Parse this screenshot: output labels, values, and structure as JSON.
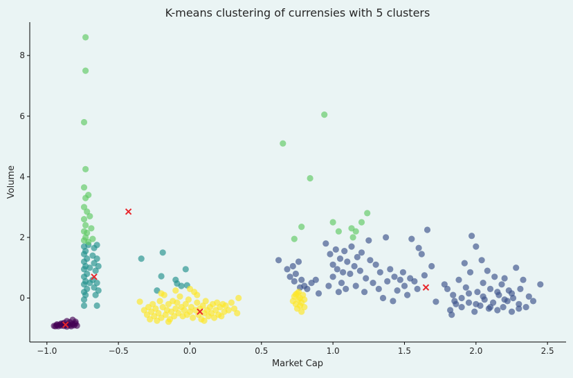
{
  "chart_data": {
    "type": "scatter",
    "title": "K-means clustering of currensies with 5 clusters",
    "xlabel": "Market Cap",
    "ylabel": "Volume",
    "xlim": [
      -1.12,
      2.63
    ],
    "ylim": [
      -1.45,
      9.1
    ],
    "xticks": [
      -1.0,
      -0.5,
      0.0,
      0.5,
      1.0,
      1.5,
      2.0,
      2.5
    ],
    "xtick_labels": [
      "−1.0",
      "−0.5",
      "0.0",
      "0.5",
      "1.0",
      "1.5",
      "2.0",
      "2.5"
    ],
    "yticks": [
      0,
      2,
      4,
      6,
      8
    ],
    "ytick_labels": [
      "0",
      "2",
      "4",
      "6",
      "8"
    ],
    "grid": false,
    "legend": "none",
    "point_alpha": 0.65,
    "centroid_color": "#e8262b",
    "series": [
      {
        "color": "#440154",
        "points": [
          [
            -0.95,
            -0.92
          ],
          [
            -0.93,
            -0.9
          ],
          [
            -0.92,
            -0.93
          ],
          [
            -0.91,
            -0.88
          ],
          [
            -0.9,
            -0.91
          ],
          [
            -0.89,
            -0.86
          ],
          [
            -0.88,
            -0.92
          ],
          [
            -0.87,
            -0.89
          ],
          [
            -0.86,
            -0.94
          ],
          [
            -0.85,
            -0.87
          ],
          [
            -0.84,
            -0.9
          ],
          [
            -0.83,
            -0.93
          ],
          [
            -0.82,
            -0.86
          ],
          [
            -0.81,
            -0.9
          ],
          [
            -0.8,
            -0.84
          ],
          [
            -0.79,
            -0.91
          ],
          [
            -0.82,
            -0.72
          ],
          [
            -0.8,
            -0.78
          ],
          [
            -0.84,
            -0.8
          ],
          [
            -0.88,
            -0.82
          ],
          [
            -0.9,
            -0.84
          ],
          [
            -0.86,
            -0.76
          ],
          [
            -0.93,
            -0.87
          ],
          [
            -0.94,
            -0.93
          ]
        ]
      },
      {
        "color": "#3b528b",
        "points": [
          [
            0.62,
            1.25
          ],
          [
            0.68,
            0.95
          ],
          [
            0.7,
            0.7
          ],
          [
            0.72,
            1.05
          ],
          [
            0.73,
            0.55
          ],
          [
            0.74,
            0.8
          ],
          [
            0.76,
            1.2
          ],
          [
            0.77,
            0.35
          ],
          [
            0.78,
            0.6
          ],
          [
            0.8,
            0.4
          ],
          [
            0.82,
            0.3
          ],
          [
            0.85,
            0.5
          ],
          [
            0.88,
            0.6
          ],
          [
            0.9,
            0.15
          ],
          [
            0.95,
            1.8
          ],
          [
            0.97,
            0.4
          ],
          [
            0.98,
            1.45
          ],
          [
            1.0,
            0.7
          ],
          [
            1.0,
            1.1
          ],
          [
            1.02,
            1.6
          ],
          [
            1.03,
            0.95
          ],
          [
            1.04,
            0.2
          ],
          [
            1.05,
            1.3
          ],
          [
            1.06,
            0.5
          ],
          [
            1.07,
            0.85
          ],
          [
            1.08,
            1.55
          ],
          [
            1.09,
            0.3
          ],
          [
            1.1,
            1.2
          ],
          [
            1.12,
            0.8
          ],
          [
            1.13,
            1.7
          ],
          [
            1.15,
            1.05
          ],
          [
            1.16,
            0.4
          ],
          [
            1.17,
            1.35
          ],
          [
            1.19,
            0.9
          ],
          [
            1.2,
            1.5
          ],
          [
            1.22,
            0.2
          ],
          [
            1.23,
            0.65
          ],
          [
            1.25,
            1.9
          ],
          [
            1.26,
            1.25
          ],
          [
            1.28,
            0.5
          ],
          [
            1.3,
            1.1
          ],
          [
            1.32,
            0.3
          ],
          [
            1.33,
            0.85
          ],
          [
            1.35,
            0.0
          ],
          [
            1.37,
            2.0
          ],
          [
            1.38,
            0.55
          ],
          [
            1.4,
            0.95
          ],
          [
            1.42,
            -0.1
          ],
          [
            1.43,
            0.7
          ],
          [
            1.45,
            0.25
          ],
          [
            1.47,
            0.6
          ],
          [
            1.49,
            0.85
          ],
          [
            1.5,
            0.4
          ],
          [
            1.52,
            0.1
          ],
          [
            1.54,
            0.65
          ],
          [
            1.55,
            1.95
          ],
          [
            1.57,
            0.55
          ],
          [
            1.59,
            0.3
          ],
          [
            1.6,
            1.65
          ],
          [
            1.62,
            1.45
          ],
          [
            1.64,
            0.75
          ],
          [
            1.66,
            2.25
          ],
          [
            1.69,
            1.05
          ],
          [
            1.72,
            -0.12
          ],
          [
            1.8,
            0.3
          ],
          [
            1.82,
            -0.4
          ],
          [
            1.84,
            0.1
          ],
          [
            1.86,
            -0.2
          ],
          [
            1.88,
            0.6
          ],
          [
            1.9,
            -0.3
          ],
          [
            1.92,
            1.15
          ],
          [
            1.93,
            0.35
          ],
          [
            1.95,
            -0.15
          ],
          [
            1.96,
            0.85
          ],
          [
            1.97,
            2.05
          ],
          [
            1.99,
            -0.45
          ],
          [
            2.0,
            1.7
          ],
          [
            2.01,
            0.2
          ],
          [
            2.03,
            -0.25
          ],
          [
            2.04,
            1.25
          ],
          [
            2.05,
            0.5
          ],
          [
            2.06,
            -0.05
          ],
          [
            2.08,
            0.9
          ],
          [
            2.09,
            -0.35
          ],
          [
            2.1,
            0.3
          ],
          [
            2.12,
            -0.15
          ],
          [
            2.13,
            0.7
          ],
          [
            2.15,
            -0.4
          ],
          [
            2.16,
            0.1
          ],
          [
            2.18,
            0.45
          ],
          [
            2.19,
            -0.3
          ],
          [
            2.2,
            0.65
          ],
          [
            2.22,
            -0.1
          ],
          [
            2.23,
            0.25
          ],
          [
            2.25,
            -0.45
          ],
          [
            2.26,
            0.0
          ],
          [
            2.28,
            1.0
          ],
          [
            2.3,
            -0.2
          ],
          [
            2.31,
            0.3
          ],
          [
            2.33,
            0.6
          ],
          [
            2.35,
            -0.3
          ],
          [
            2.37,
            0.05
          ],
          [
            2.4,
            -0.1
          ],
          [
            2.45,
            0.45
          ],
          [
            1.85,
            -0.1
          ],
          [
            1.9,
            0.0
          ],
          [
            1.95,
            0.15
          ],
          [
            2.0,
            -0.2
          ],
          [
            2.05,
            0.05
          ],
          [
            2.1,
            -0.3
          ],
          [
            2.15,
            0.2
          ],
          [
            2.2,
            -0.05
          ],
          [
            2.25,
            0.15
          ],
          [
            2.3,
            -0.35
          ],
          [
            1.78,
            0.45
          ],
          [
            1.83,
            -0.55
          ]
        ]
      },
      {
        "color": "#21918c",
        "points": [
          [
            -0.74,
            1.7
          ],
          [
            -0.74,
            1.45
          ],
          [
            -0.74,
            1.2
          ],
          [
            -0.74,
            0.95
          ],
          [
            -0.74,
            0.7
          ],
          [
            -0.74,
            0.45
          ],
          [
            -0.74,
            0.2
          ],
          [
            -0.74,
            -0.05
          ],
          [
            -0.74,
            -0.25
          ],
          [
            -0.73,
            1.55
          ],
          [
            -0.73,
            1.05
          ],
          [
            -0.73,
            0.55
          ],
          [
            -0.73,
            0.1
          ],
          [
            -0.72,
            1.3
          ],
          [
            -0.72,
            0.8
          ],
          [
            -0.72,
            0.3
          ],
          [
            -0.71,
            1.75
          ],
          [
            -0.7,
            1.0
          ],
          [
            -0.7,
            0.5
          ],
          [
            -0.68,
            1.4
          ],
          [
            -0.68,
            0.6
          ],
          [
            -0.67,
            1.65
          ],
          [
            -0.67,
            1.15
          ],
          [
            -0.67,
            0.35
          ],
          [
            -0.66,
            0.9
          ],
          [
            -0.66,
            0.1
          ],
          [
            -0.65,
            1.75
          ],
          [
            -0.65,
            1.3
          ],
          [
            -0.65,
            0.5
          ],
          [
            -0.65,
            -0.25
          ],
          [
            -0.64,
            1.05
          ],
          [
            -0.64,
            0.25
          ],
          [
            -0.34,
            1.3
          ],
          [
            -0.23,
            0.25
          ],
          [
            -0.2,
            0.72
          ],
          [
            -0.19,
            1.5
          ],
          [
            -0.1,
            0.6
          ],
          [
            -0.09,
            0.48
          ],
          [
            -0.06,
            0.4
          ],
          [
            -0.03,
            0.95
          ],
          [
            -0.02,
            0.42
          ]
        ]
      },
      {
        "color": "#5ec962",
        "points": [
          [
            -0.74,
            3.0
          ],
          [
            -0.74,
            2.6
          ],
          [
            -0.74,
            2.2
          ],
          [
            -0.74,
            1.9
          ],
          [
            -0.74,
            3.65
          ],
          [
            -0.73,
            2.4
          ],
          [
            -0.73,
            2.0
          ],
          [
            -0.73,
            3.3
          ],
          [
            -0.72,
            2.85
          ],
          [
            -0.72,
            2.15
          ],
          [
            -0.71,
            3.4
          ],
          [
            -0.71,
            1.85
          ],
          [
            -0.7,
            2.7
          ],
          [
            -0.69,
            2.3
          ],
          [
            -0.68,
            1.95
          ],
          [
            -0.74,
            5.8
          ],
          [
            -0.73,
            4.25
          ],
          [
            -0.73,
            7.5
          ],
          [
            -0.73,
            8.6
          ],
          [
            0.65,
            5.1
          ],
          [
            0.73,
            1.95
          ],
          [
            0.78,
            2.35
          ],
          [
            0.84,
            3.95
          ],
          [
            0.94,
            6.05
          ],
          [
            1.0,
            2.5
          ],
          [
            1.04,
            2.2
          ],
          [
            1.13,
            2.3
          ],
          [
            1.14,
            2.0
          ],
          [
            1.16,
            2.2
          ],
          [
            1.2,
            2.5
          ],
          [
            1.24,
            2.8
          ]
        ]
      },
      {
        "color": "#fde725",
        "points": [
          [
            -0.35,
            -0.12
          ],
          [
            -0.32,
            -0.4
          ],
          [
            -0.3,
            -0.55
          ],
          [
            -0.29,
            -0.3
          ],
          [
            -0.28,
            -0.7
          ],
          [
            -0.27,
            -0.45
          ],
          [
            -0.26,
            -0.2
          ],
          [
            -0.25,
            -0.6
          ],
          [
            -0.24,
            -0.35
          ],
          [
            -0.23,
            -0.75
          ],
          [
            -0.22,
            -0.5
          ],
          [
            -0.21,
            -0.1
          ],
          [
            -0.2,
            -0.65
          ],
          [
            -0.19,
            -0.3
          ],
          [
            -0.18,
            0.1
          ],
          [
            -0.17,
            -0.55
          ],
          [
            -0.16,
            -0.4
          ],
          [
            -0.15,
            -0.2
          ],
          [
            -0.14,
            -0.7
          ],
          [
            -0.13,
            -0.45
          ],
          [
            -0.12,
            -0.1
          ],
          [
            -0.11,
            -0.6
          ],
          [
            -0.1,
            -0.35
          ],
          [
            -0.09,
            -0.15
          ],
          [
            -0.08,
            -0.5
          ],
          [
            -0.07,
            0.05
          ],
          [
            -0.06,
            -0.3
          ],
          [
            -0.05,
            -0.6
          ],
          [
            -0.04,
            -0.4
          ],
          [
            -0.03,
            -0.2
          ],
          [
            -0.02,
            -0.55
          ],
          [
            -0.01,
            -0.05
          ],
          [
            0.0,
            -0.45
          ],
          [
            0.01,
            -0.3
          ],
          [
            0.02,
            -0.65
          ],
          [
            0.03,
            0.2
          ],
          [
            0.04,
            -0.4
          ],
          [
            0.05,
            -0.15
          ],
          [
            0.06,
            -0.55
          ],
          [
            0.07,
            -0.35
          ],
          [
            0.08,
            -0.7
          ],
          [
            0.09,
            -0.25
          ],
          [
            0.1,
            -0.5
          ],
          [
            0.11,
            -0.1
          ],
          [
            0.12,
            -0.4
          ],
          [
            0.13,
            -0.6
          ],
          [
            0.14,
            -0.3
          ],
          [
            0.15,
            -0.5
          ],
          [
            0.16,
            -0.2
          ],
          [
            0.17,
            -0.65
          ],
          [
            0.18,
            -0.4
          ],
          [
            0.19,
            -0.15
          ],
          [
            0.2,
            -0.55
          ],
          [
            0.21,
            -0.3
          ],
          [
            0.22,
            -0.6
          ],
          [
            0.23,
            -0.2
          ],
          [
            0.24,
            -0.45
          ],
          [
            0.25,
            -0.25
          ],
          [
            0.27,
            -0.4
          ],
          [
            0.29,
            -0.15
          ],
          [
            0.31,
            -0.35
          ],
          [
            0.33,
            -0.5
          ],
          [
            0.34,
            0.0
          ],
          [
            -0.2,
            0.15
          ],
          [
            -0.1,
            0.25
          ],
          [
            0.0,
            0.3
          ],
          [
            0.05,
            0.1
          ],
          [
            0.1,
            -0.75
          ],
          [
            -0.15,
            -0.78
          ],
          [
            0.73,
            0.05
          ],
          [
            0.74,
            -0.2
          ],
          [
            0.75,
            0.15
          ],
          [
            0.75,
            -0.35
          ],
          [
            0.76,
            -0.05
          ],
          [
            0.76,
            0.2
          ],
          [
            0.77,
            -0.25
          ],
          [
            0.77,
            0.0
          ],
          [
            0.78,
            -0.45
          ],
          [
            0.78,
            -0.15
          ],
          [
            0.79,
            0.1
          ],
          [
            0.8,
            -0.3
          ],
          [
            0.8,
            -0.05
          ],
          [
            0.74,
            0.12
          ],
          [
            0.72,
            -0.1
          ]
        ]
      }
    ],
    "centroids": [
      [
        -0.87,
        -0.88
      ],
      [
        1.65,
        0.35
      ],
      [
        -0.67,
        0.7
      ],
      [
        -0.43,
        2.85
      ],
      [
        0.07,
        -0.45
      ]
    ]
  }
}
